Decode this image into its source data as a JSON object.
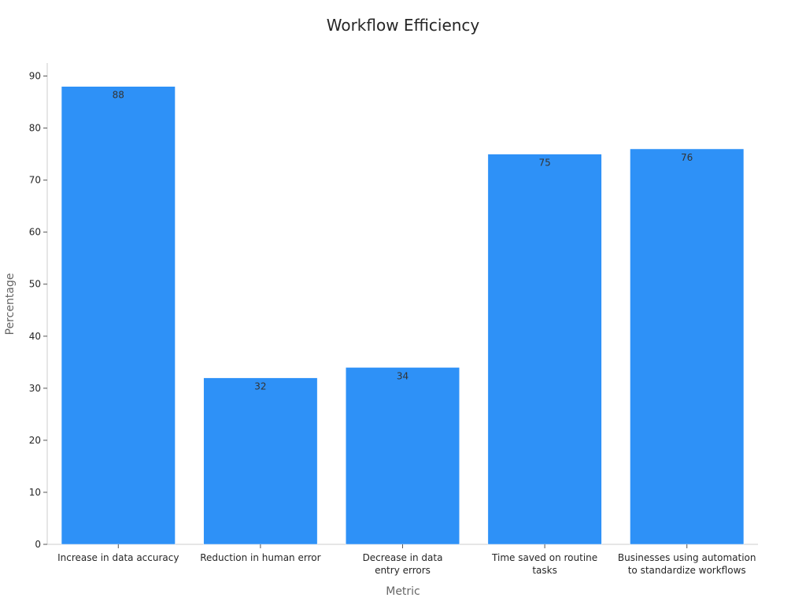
{
  "chart_data": {
    "type": "bar",
    "title": "Workflow Efficiency",
    "xlabel": "Metric",
    "ylabel": "Percentage",
    "categories": [
      [
        "Increase in data accuracy"
      ],
      [
        "Reduction in human error"
      ],
      [
        "Decrease in data",
        "entry errors"
      ],
      [
        "Time saved on routine",
        "tasks"
      ],
      [
        "Businesses using automation",
        "to standardize workflows"
      ]
    ],
    "values": [
      88,
      32,
      34,
      75,
      76
    ],
    "ylim": [
      0,
      92.5
    ],
    "yticks": [
      0,
      10,
      20,
      30,
      40,
      50,
      60,
      70,
      80,
      90
    ],
    "grid": false,
    "legend": "none",
    "bar_color": "#2e91f7"
  }
}
